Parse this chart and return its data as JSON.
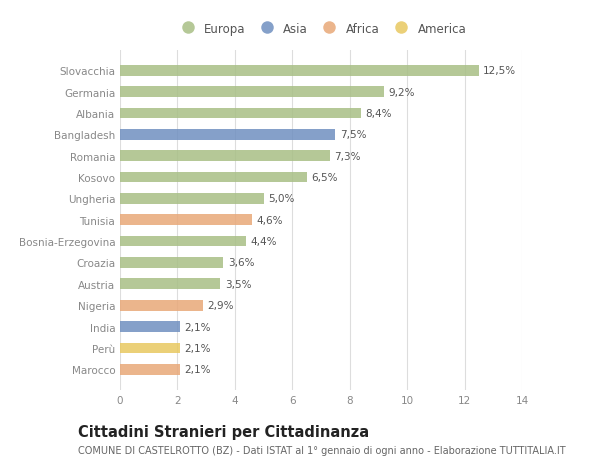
{
  "categories": [
    "Slovacchia",
    "Germania",
    "Albania",
    "Bangladesh",
    "Romania",
    "Kosovo",
    "Ungheria",
    "Tunisia",
    "Bosnia-Erzegovina",
    "Croazia",
    "Austria",
    "Nigeria",
    "India",
    "Perù",
    "Marocco"
  ],
  "values": [
    12.5,
    9.2,
    8.4,
    7.5,
    7.3,
    6.5,
    5.0,
    4.6,
    4.4,
    3.6,
    3.5,
    2.9,
    2.1,
    2.1,
    2.1
  ],
  "continents": [
    "Europa",
    "Europa",
    "Europa",
    "Asia",
    "Europa",
    "Europa",
    "Europa",
    "Africa",
    "Europa",
    "Europa",
    "Europa",
    "Africa",
    "Asia",
    "America",
    "Africa"
  ],
  "colors": {
    "Europa": "#a8bf85",
    "Asia": "#7090c0",
    "Africa": "#e8a878",
    "America": "#e8c860"
  },
  "xlim": [
    0,
    14
  ],
  "xticks": [
    0,
    2,
    4,
    6,
    8,
    10,
    12,
    14
  ],
  "title": "Cittadini Stranieri per Cittadinanza",
  "subtitle": "COMUNE DI CASTELROTTO (BZ) - Dati ISTAT al 1° gennaio di ogni anno - Elaborazione TUTTITALIA.IT",
  "background_color": "#ffffff",
  "bar_height": 0.5,
  "label_fontsize": 7.5,
  "title_fontsize": 10.5,
  "subtitle_fontsize": 7.0,
  "axis_fontsize": 7.5,
  "legend_fontsize": 8.5,
  "legend_order": [
    "Europa",
    "Asia",
    "Africa",
    "America"
  ]
}
